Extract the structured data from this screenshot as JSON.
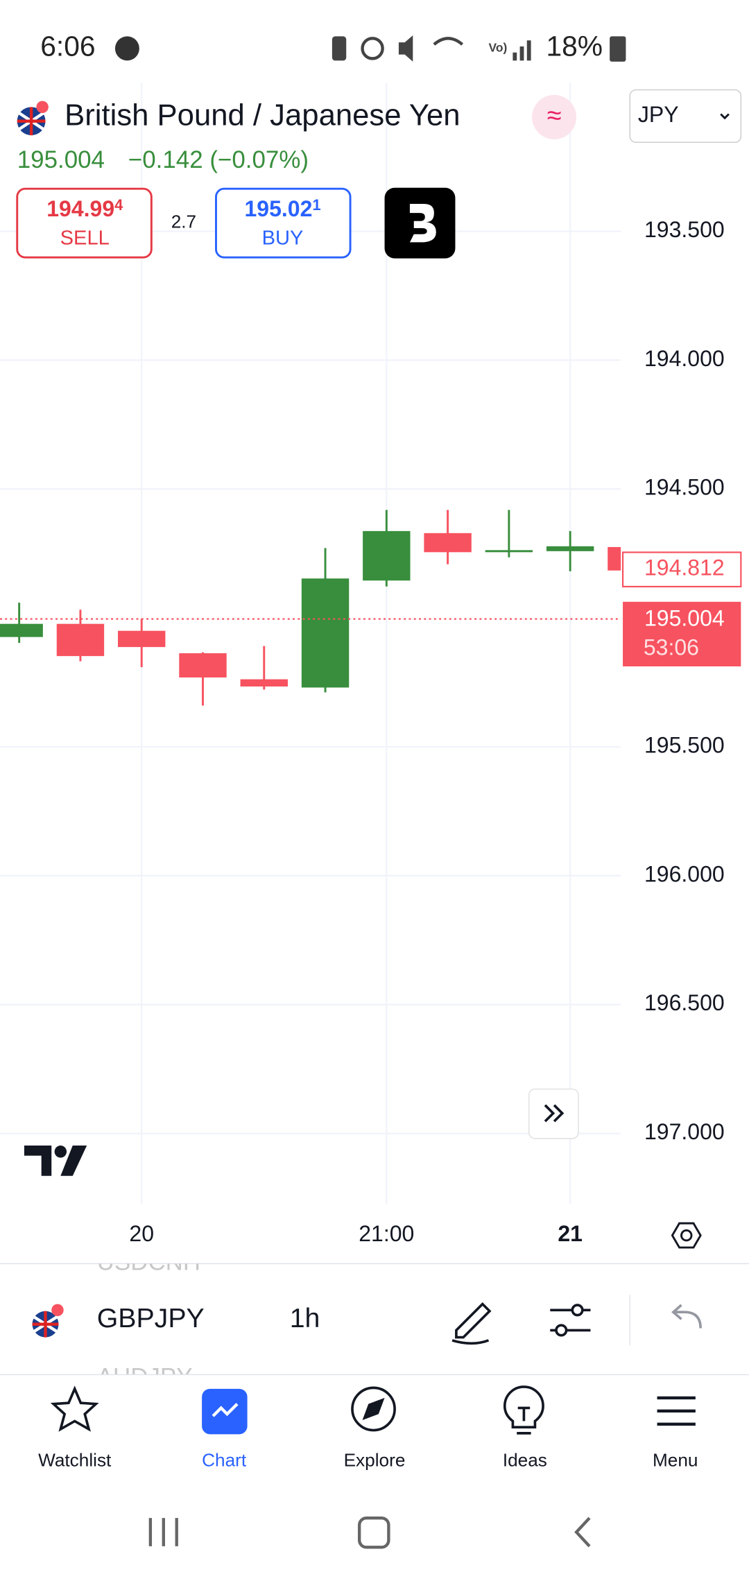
{
  "status_bar": {
    "time": "6:06",
    "battery": "18%"
  },
  "header": {
    "title": "British Pound / Japanese Yen",
    "currency": "JPY",
    "price": "195.004",
    "change": "−0.142 (−0.07%)"
  },
  "trade": {
    "sell_price": "194.99",
    "sell_price_pip": "4",
    "sell_label": "SELL",
    "spread": "2.7",
    "buy_price": "195.02",
    "buy_price_pip": "1",
    "buy_label": "BUY"
  },
  "chart_data": {
    "type": "candlestick",
    "categories": [
      null,
      null,
      "20",
      null,
      null,
      null,
      "21:00",
      null,
      null,
      "21",
      null
    ],
    "series": {
      "open": [
        195.023,
        195.148,
        195.113,
        195.231,
        195.266,
        194.847,
        194.663,
        194.745,
        194.737,
        194.722,
        194.816
      ],
      "high": [
        195.097,
        195.168,
        195.191,
        195.34,
        195.278,
        195.289,
        194.878,
        194.792,
        194.765,
        194.819,
        194.816
      ],
      "low": [
        194.941,
        194.968,
        195.004,
        195.133,
        195.109,
        194.729,
        194.581,
        194.581,
        194.581,
        194.663,
        194.725
      ],
      "close": [
        195.074,
        195.023,
        195.05,
        195.137,
        195.238,
        195.27,
        194.855,
        194.671,
        194.745,
        194.741,
        194.725
      ]
    },
    "up_color": "#388e3c",
    "down_color": "#f7525f",
    "ylim": [
      192.924,
      197.274
    ],
    "y_inverted": true,
    "yticks": [
      {
        "value": 193.5,
        "label": "193.500"
      },
      {
        "value": 194,
        "label": "194.000"
      },
      {
        "value": 194.5,
        "label": "194.500"
      },
      {
        "value": 195.5,
        "label": "195.500"
      },
      {
        "value": 196,
        "label": "196.000"
      },
      {
        "value": 196.5,
        "label": "196.500"
      },
      {
        "value": 197,
        "label": "197.000"
      }
    ],
    "grid": true,
    "marker_price": 194.812,
    "last_price": 195.004,
    "countdown": "53:06"
  },
  "toolbar": {
    "symbol": "GBPJPY",
    "interval": "1h",
    "symbol_above": "USDCNH",
    "symbol_below": "AUDJPY"
  },
  "nav": {
    "items": [
      "Watchlist",
      "Chart",
      "Explore",
      "Ideas",
      "Menu"
    ],
    "active": 1
  }
}
